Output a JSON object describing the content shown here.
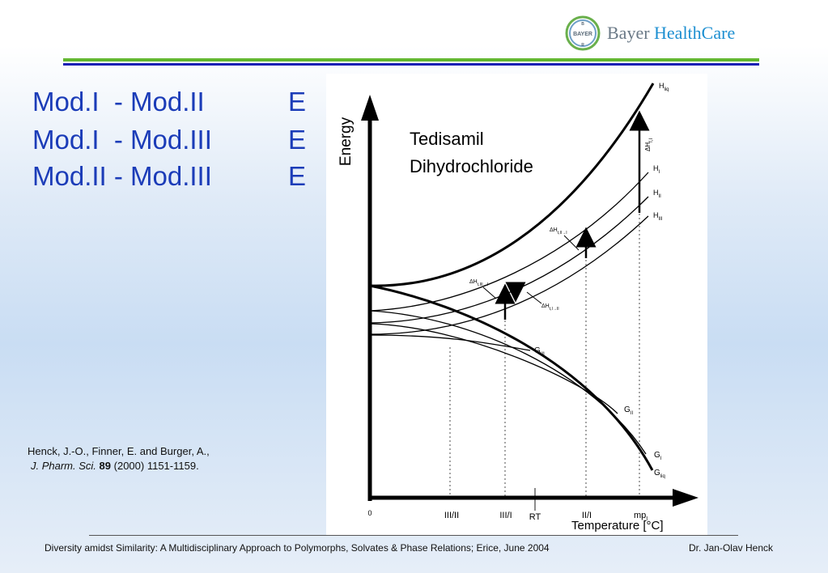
{
  "header": {
    "logo": {
      "mark_text": "BAYER",
      "brand": "Bayer",
      "product": "HealthCare"
    },
    "colors": {
      "green_rule": "#62b72f",
      "blue_rule": "#1b1fb5",
      "title_text": "#1b3cb8"
    }
  },
  "pairs": [
    {
      "label": "Mod.I  - Mod.II",
      "symbol": "E"
    },
    {
      "label": "Mod.I  - Mod.III",
      "symbol": "E"
    },
    {
      "label": "Mod.II - Mod.III",
      "symbol": "E"
    }
  ],
  "reference": {
    "authors": "Henck, J.-O., Finner, E. and Burger, A.,",
    "journal": "J. Pharm. Sci.",
    "volume": "89",
    "rest": "(2000) 1151-1159."
  },
  "diagram": {
    "title_line1": "Tedisamil",
    "title_line2": "Dihydrochloride",
    "y_axis_label": "Energy",
    "x_axis_label": "Temperature [°C]",
    "origin_label": "0",
    "x_ticks": [
      "III/II",
      "III/I",
      "RT",
      "II/I",
      "mp",
      "I"
    ],
    "curve_labels": {
      "h_liq": "H",
      "h_liq_sub": "liq",
      "dh_fi": "ΔH",
      "dh_fi_sub": "f,I",
      "h1": "H",
      "h1_sub": "I",
      "h2": "H",
      "h2_sub": "II",
      "h3": "H",
      "h3_sub": "III",
      "dh_t_2_1": "ΔH",
      "dh_t_2_1_sub": "t,II→I",
      "dh_t_3_1": "ΔH",
      "dh_t_3_1_sub": "t,III→I",
      "dh_t_1_2": "ΔH",
      "dh_t_1_2_sub": "t,I→II",
      "g3": "G",
      "g3_sub": "III",
      "g2": "G",
      "g2_sub": "II",
      "g1": "G",
      "g1_sub": "I",
      "gliq": "G",
      "gliq_sub": "liq"
    }
  },
  "footer": {
    "left": "Diversity amidst Similarity: A Multidisciplinary Approach to Polymorphs, Solvates & Phase Relations; Erice, June 2004",
    "right": "Dr. Jan-Olav Henck"
  }
}
